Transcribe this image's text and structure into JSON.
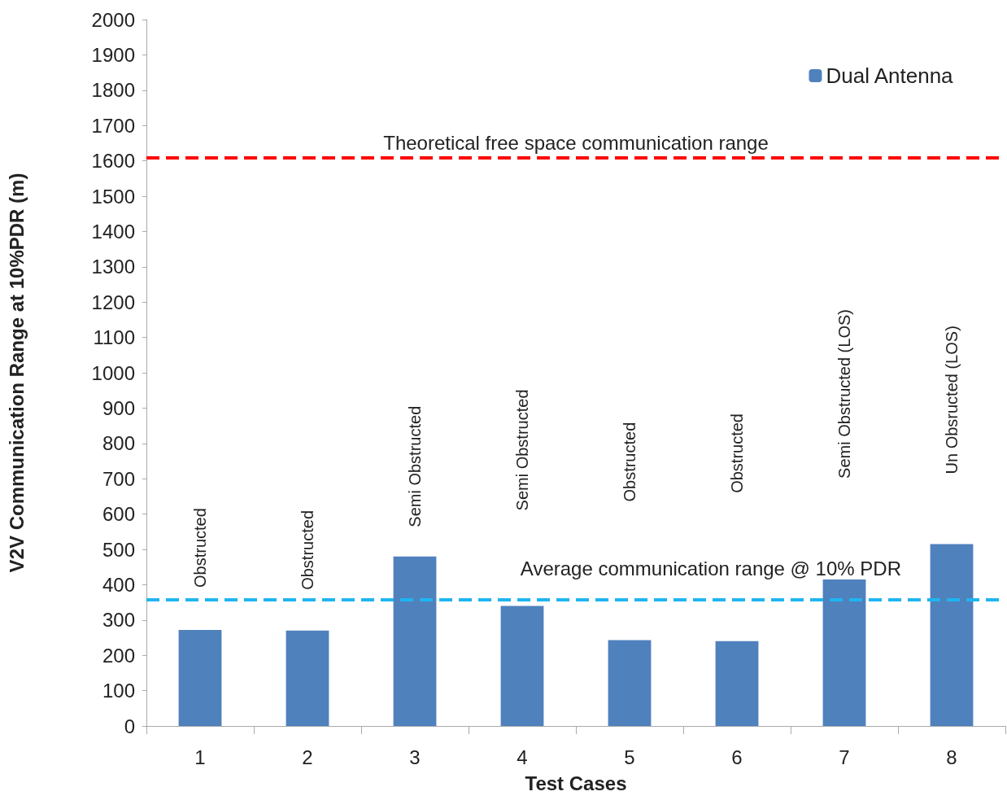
{
  "chart_data": {
    "type": "bar",
    "xlabel": "Test Cases",
    "ylabel": "V2V Communication Range at 10%PDR (m)",
    "categories": [
      "1",
      "2",
      "3",
      "4",
      "5",
      "6",
      "7",
      "8"
    ],
    "series": [
      {
        "name": "Dual Antenna",
        "color": "#4f81bd",
        "values": [
          272,
          270,
          480,
          340,
          243,
          240,
          415,
          515
        ]
      }
    ],
    "ylim": [
      0,
      2000
    ],
    "yticks": [
      0,
      100,
      200,
      300,
      400,
      500,
      600,
      700,
      800,
      900,
      1000,
      1100,
      1200,
      1300,
      1400,
      1500,
      1600,
      1700,
      1800,
      1900,
      2000
    ],
    "ref_lines": [
      {
        "axis": "y",
        "value": 1610,
        "label": "Theoretical free space communication range",
        "color": "#ff0000",
        "line_style": "dashed"
      },
      {
        "axis": "y",
        "value": 358,
        "label": "Average communication range @ 10% PDR",
        "color": "#1fb5f0",
        "line_style": "dashed"
      }
    ],
    "annotations": [
      "Obstructed",
      "Obstructed",
      "Semi Obstructed",
      "Semi Obstructed",
      "Obstructed",
      "Obstructed",
      "Semi Obstructed (LOS)",
      "Un Obsructed (LOS)"
    ],
    "legend": "top right",
    "grid": false
  }
}
